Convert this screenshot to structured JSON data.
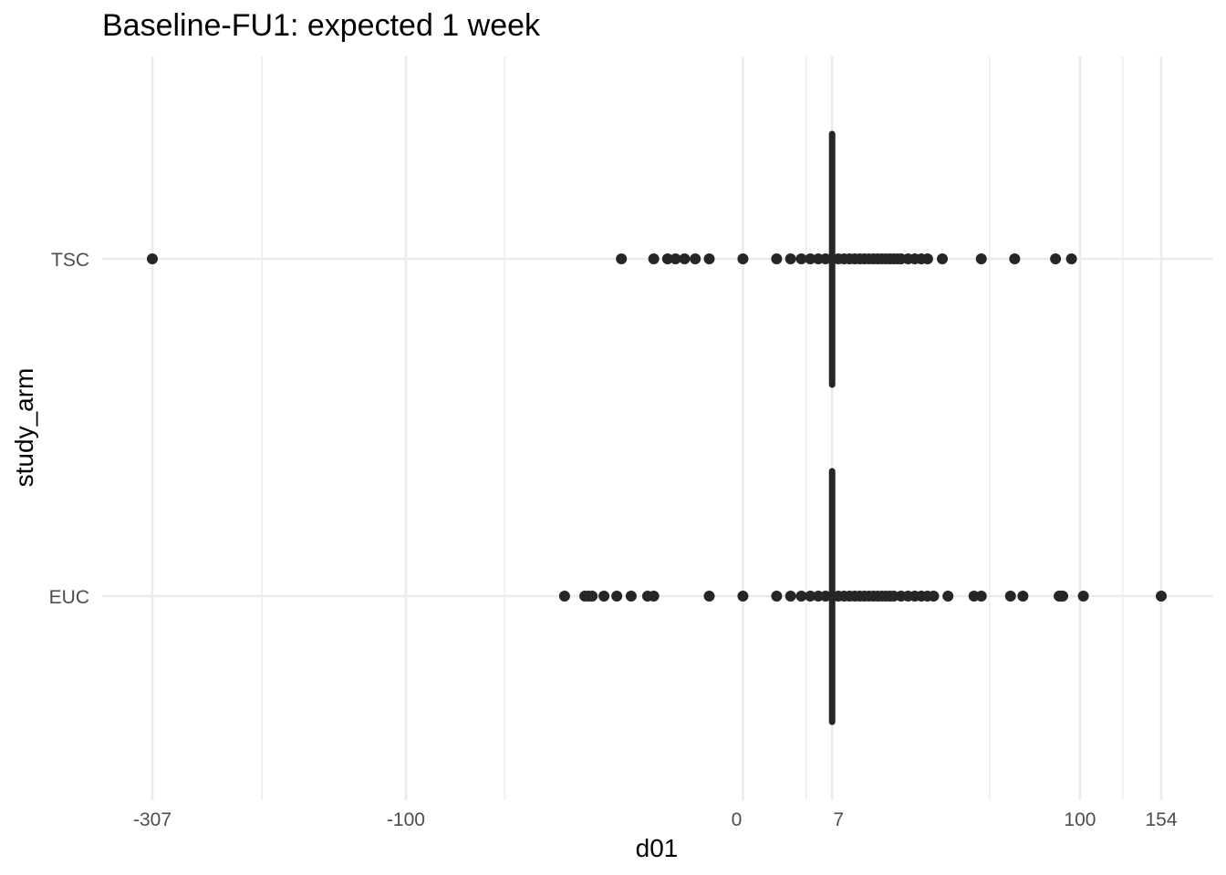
{
  "chart_data": {
    "type": "scatter",
    "title": "Baseline-FU1: expected 1 week",
    "xlabel": "d01",
    "ylabel": "study_arm",
    "xlim": [
      -307,
      154
    ],
    "x_breaks": [
      -307,
      -100,
      0,
      7,
      100,
      154
    ],
    "x_tick_labels": [
      "-307",
      "-100",
      "0",
      "7",
      "100",
      "154"
    ],
    "x_minor_breaks": [
      -203.5,
      -50,
      3.5,
      53.5,
      127
    ],
    "categories": [
      "TSC",
      "EUC"
    ],
    "reference_line": 7,
    "grid": true,
    "legend": "none",
    "series": [
      {
        "category": "TSC",
        "x": [
          -307,
          -13,
          -7,
          -5,
          -4,
          -3,
          -2,
          -1,
          0,
          1,
          2,
          3,
          4,
          5,
          6,
          7,
          8,
          9,
          10,
          11,
          12,
          13,
          14,
          15,
          16,
          17,
          18,
          19,
          20,
          21,
          22,
          24,
          26,
          28,
          30,
          35,
          50,
          65,
          86,
          95
        ]
      },
      {
        "category": "EUC",
        "x": [
          -28,
          -22,
          -21,
          -20,
          -17,
          -14,
          -11,
          -8,
          -7,
          -1,
          0,
          1,
          2,
          3,
          4,
          5,
          6,
          7,
          8,
          9,
          10,
          11,
          12,
          13,
          14,
          15,
          16,
          17,
          18,
          19,
          20,
          22,
          24,
          26,
          28,
          30,
          32,
          37,
          47,
          50,
          63,
          69,
          88,
          89,
          90,
          102,
          154
        ]
      }
    ],
    "colors": {
      "points": "#262626",
      "grid": "#ebebeb",
      "tick_text": "#4d4d4d",
      "text": "#000000",
      "background": "#ffffff"
    }
  }
}
